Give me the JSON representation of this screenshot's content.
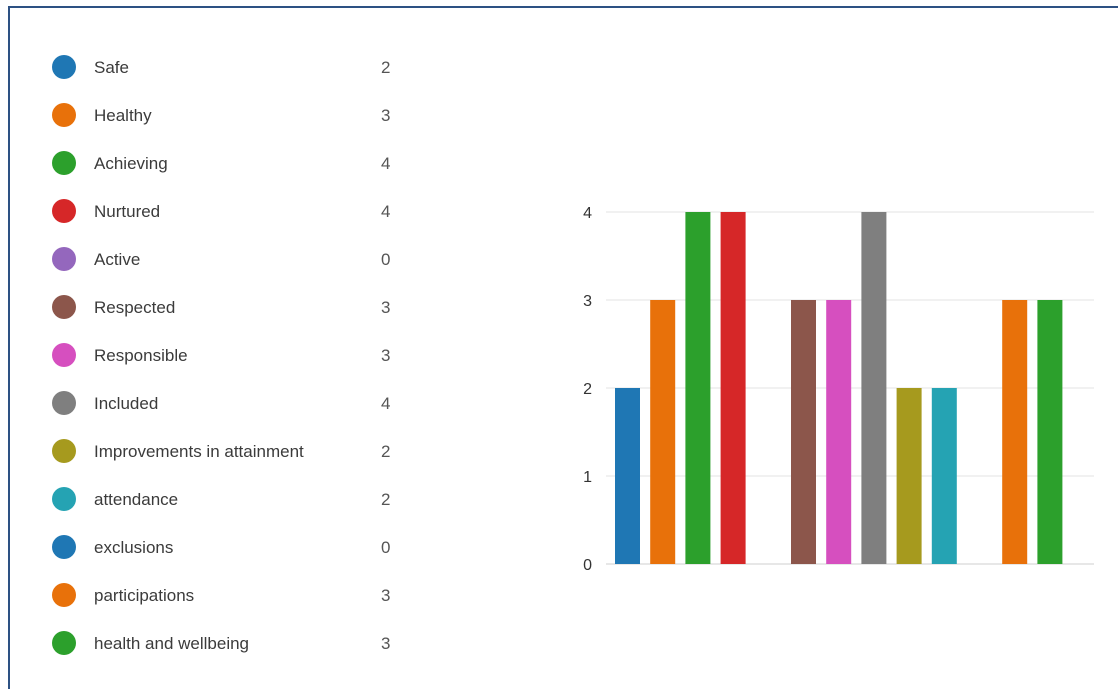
{
  "legend": {
    "items": [
      {
        "label": "Safe",
        "value": "2",
        "color": "#1f77b4"
      },
      {
        "label": "Healthy",
        "value": "3",
        "color": "#e8710a"
      },
      {
        "label": "Achieving",
        "value": "4",
        "color": "#2ca02c"
      },
      {
        "label": "Nurtured",
        "value": "4",
        "color": "#d62728"
      },
      {
        "label": "Active",
        "value": "0",
        "color": "#9467bd"
      },
      {
        "label": "Respected",
        "value": "3",
        "color": "#8c564b"
      },
      {
        "label": "Responsible",
        "value": "3",
        "color": "#d64fbf"
      },
      {
        "label": "Included",
        "value": "4",
        "color": "#7f7f7f"
      },
      {
        "label": "Improvements in attainment",
        "value": "2",
        "color": "#a69a1e"
      },
      {
        "label": "attendance",
        "value": "2",
        "color": "#25a3b3"
      },
      {
        "label": "exclusions",
        "value": "0",
        "color": "#1f77b4"
      },
      {
        "label": "participations",
        "value": "3",
        "color": "#e8710a"
      },
      {
        "label": "health and wellbeing",
        "value": "3",
        "color": "#2ca02c"
      }
    ]
  },
  "chart_data": {
    "type": "bar",
    "categories": [
      "Safe",
      "Healthy",
      "Achieving",
      "Nurtured",
      "Active",
      "Respected",
      "Responsible",
      "Included",
      "Improvements in attainment",
      "attendance",
      "exclusions",
      "participations",
      "health and wellbeing"
    ],
    "values": [
      2,
      3,
      4,
      4,
      0,
      3,
      3,
      4,
      2,
      2,
      0,
      3,
      3
    ],
    "colors": [
      "#1f77b4",
      "#e8710a",
      "#2ca02c",
      "#d62728",
      "#9467bd",
      "#8c564b",
      "#d64fbf",
      "#7f7f7f",
      "#a69a1e",
      "#25a3b3",
      "#1f77b4",
      "#e8710a",
      "#2ca02c"
    ],
    "yticks": [
      0,
      1,
      2,
      3,
      4
    ],
    "ylim": [
      0,
      4
    ],
    "grid": true,
    "title": "",
    "xlabel": "",
    "ylabel": ""
  }
}
